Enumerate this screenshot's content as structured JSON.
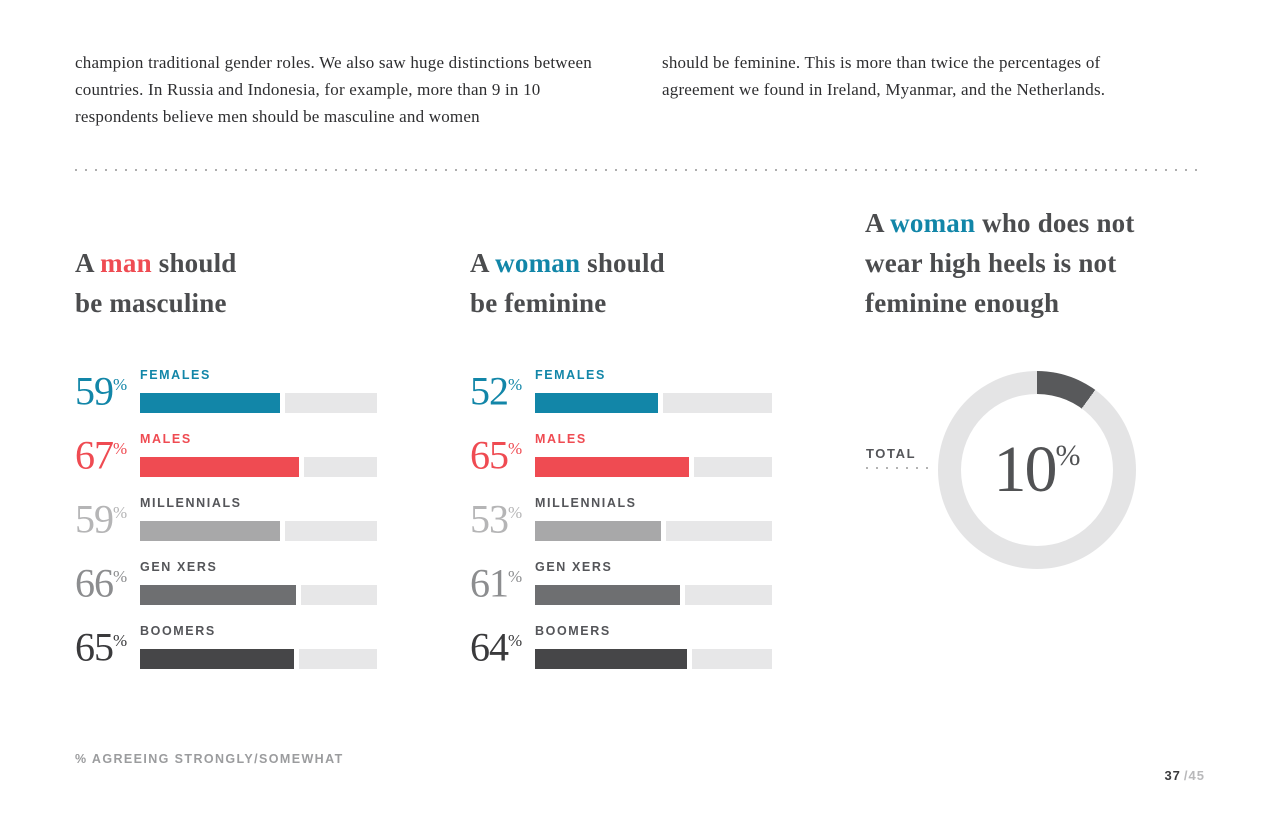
{
  "percent": "%",
  "intro": {
    "left": "champion traditional gender roles. We also saw huge distinctions between countries. In Russia and Indonesia, for example, more than 9 in 10 respondents believe men should be masculine and women",
    "right": "should be feminine. This is more than twice the percentages of agreement we found in Ireland, Myanmar, and the Netherlands."
  },
  "charts": [
    {
      "title": {
        "pre": "A ",
        "accent": "man",
        "post": " should",
        "line2": "be masculine"
      },
      "rows": [
        {
          "label": "FEMALES",
          "value": 59
        },
        {
          "label": "MALES",
          "value": 67
        },
        {
          "label": "MILLENNIALS",
          "value": 59
        },
        {
          "label": "GEN XERS",
          "value": 66
        },
        {
          "label": "BOOMERS",
          "value": 65
        }
      ]
    },
    {
      "title": {
        "pre": "A ",
        "accent": "woman",
        "post": " should",
        "line2": "be feminine"
      },
      "rows": [
        {
          "label": "FEMALES",
          "value": 52
        },
        {
          "label": "MALES",
          "value": 65
        },
        {
          "label": "MILLENNIALS",
          "value": 53
        },
        {
          "label": "GEN XERS",
          "value": 61
        },
        {
          "label": "BOOMERS",
          "value": 64
        }
      ]
    }
  ],
  "donut": {
    "title": {
      "pre": "A ",
      "accent": "woman",
      "post": " who does not",
      "line2": "wear high heels is not",
      "line3": "feminine enough"
    },
    "label": "TOTAL",
    "value": 10
  },
  "footer": {
    "note": "% AGREEING STRONGLY/SOMEWHAT",
    "page_current": "37",
    "page_rest": "/45"
  },
  "colors": {
    "teal": "#1286a8",
    "red": "#ef4b52",
    "millennials_bar": "#a8a8a9",
    "genx_bar": "#6e6f71",
    "boomers_bar": "#464648",
    "track": "#e7e7e8",
    "segment": "#58595b",
    "ring": "#e4e4e5",
    "title_text": "#4b4c4e",
    "label_text": "#545559",
    "footnote_text": "#9b9c9e"
  },
  "chart_data": [
    {
      "type": "bar",
      "title": "A man should be masculine",
      "categories": [
        "FEMALES",
        "MALES",
        "MILLENNIALS",
        "GEN XERS",
        "BOOMERS"
      ],
      "values": [
        59,
        67,
        59,
        66,
        65
      ],
      "unit": "%",
      "xlim": [
        0,
        100
      ],
      "orientation": "horizontal",
      "note": "% AGREEING STRONGLY/SOMEWHAT"
    },
    {
      "type": "bar",
      "title": "A woman should be feminine",
      "categories": [
        "FEMALES",
        "MALES",
        "MILLENNIALS",
        "GEN XERS",
        "BOOMERS"
      ],
      "values": [
        52,
        65,
        53,
        61,
        64
      ],
      "unit": "%",
      "xlim": [
        0,
        100
      ],
      "orientation": "horizontal",
      "note": "% AGREEING STRONGLY/SOMEWHAT"
    },
    {
      "type": "pie",
      "title": "A woman who does not wear high heels is not feminine enough",
      "categories": [
        "TOTAL"
      ],
      "values": [
        10
      ],
      "unit": "%",
      "style": "donut",
      "start_angle": "top"
    }
  ]
}
